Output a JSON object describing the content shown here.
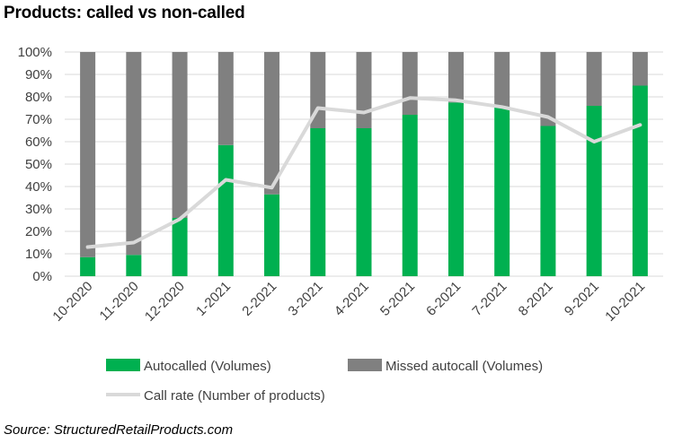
{
  "title": "Products: called vs non-called",
  "source": "Source: StructuredRetailProducts.com",
  "chart_data": {
    "type": "bar",
    "stacked": true,
    "categories": [
      "10-2020",
      "11-2020",
      "12-2020",
      "1-2021",
      "2-2021",
      "3-2021",
      "4-2021",
      "5-2021",
      "6-2021",
      "7-2021",
      "8-2021",
      "9-2021",
      "10-2021"
    ],
    "ylim": [
      0,
      100
    ],
    "yticks": [
      "0%",
      "10%",
      "20%",
      "30%",
      "40%",
      "50%",
      "60%",
      "70%",
      "80%",
      "90%",
      "100%"
    ],
    "grid": true,
    "legend_position": "bottom",
    "series": [
      {
        "name": "Autocalled (Volumes)",
        "type": "bar",
        "color": "#00b050",
        "values": [
          8.5,
          9.5,
          26,
          58.5,
          36.5,
          66,
          66,
          72,
          77.5,
          75.5,
          67,
          76,
          85
        ]
      },
      {
        "name": "Missed autocall (Volumes)",
        "type": "bar",
        "color": "#808080",
        "values": [
          91.5,
          90.5,
          74,
          41.5,
          63.5,
          34,
          34,
          28,
          22.5,
          24.5,
          33,
          24,
          15
        ]
      },
      {
        "name": "Call rate (Number of products)",
        "type": "line",
        "color": "#d9d9d9",
        "values": [
          13,
          15,
          25.5,
          43,
          39.5,
          75,
          73,
          79.5,
          78.5,
          75.5,
          71,
          60,
          67.5
        ]
      }
    ]
  }
}
